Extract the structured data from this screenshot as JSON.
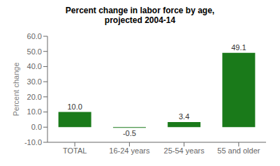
{
  "chart_data": {
    "type": "bar",
    "title": "Percent change in labor force by age,\nprojected 2004-14",
    "categories": [
      "TOTAL",
      "16-24 years",
      "25-54 years",
      "55 and older"
    ],
    "values": [
      10.0,
      -0.5,
      3.4,
      49.1
    ],
    "value_labels": [
      "10.0",
      "-0.5",
      "3.4",
      "49.1"
    ],
    "data_labels": true,
    "color": "#1a7a1a",
    "ylabel": "Percent change",
    "ylim": [
      -10.0,
      60.0
    ],
    "yticks": [
      {
        "value": -10.0,
        "label": "-10.0"
      },
      {
        "value": 0.0,
        "label": "0.0"
      },
      {
        "value": 10.0,
        "label": "10.0"
      },
      {
        "value": 20.0,
        "label": "20.0"
      },
      {
        "value": 30.0,
        "label": "30.0"
      },
      {
        "value": 40.0,
        "label": "40.0"
      },
      {
        "value": 50.0,
        "label": "50.0"
      },
      {
        "value": 60.0,
        "label": "60.0"
      }
    ],
    "grid": false
  }
}
